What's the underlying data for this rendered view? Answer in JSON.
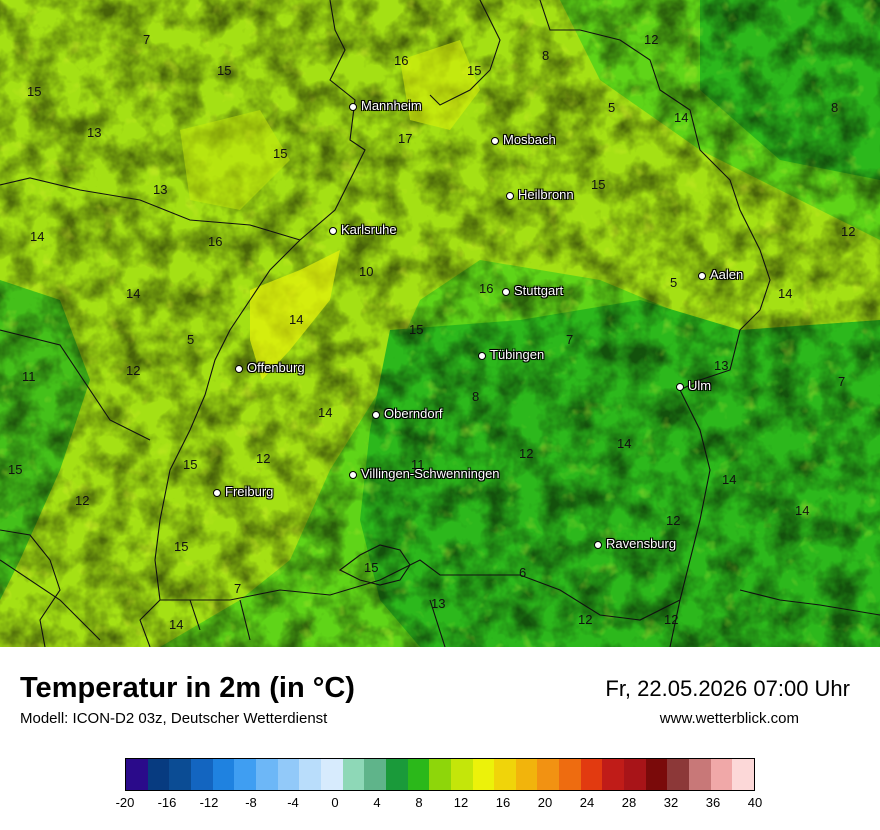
{
  "map": {
    "cities": [
      {
        "name": "Mannheim",
        "id": "mannheim"
      },
      {
        "name": "Mosbach",
        "id": "mosbach"
      },
      {
        "name": "Heilbronn",
        "id": "heilbronn"
      },
      {
        "name": "Karlsruhe",
        "id": "karlsruhe"
      },
      {
        "name": "Aalen",
        "id": "aalen"
      },
      {
        "name": "Stuttgart",
        "id": "stuttgart"
      },
      {
        "name": "Tübingen",
        "id": "tuebingen"
      },
      {
        "name": "Offenburg",
        "id": "offenburg"
      },
      {
        "name": "Ulm",
        "id": "ulm"
      },
      {
        "name": "Oberndorf",
        "id": "oberndorf"
      },
      {
        "name": "Villingen-Schwenningen",
        "id": "villingen"
      },
      {
        "name": "Freiburg",
        "id": "freiburg"
      },
      {
        "name": "Ravensburg",
        "id": "ravensburg"
      }
    ],
    "temperature_labels": [
      "7",
      "15",
      "16",
      "15",
      "8",
      "12",
      "15",
      "13",
      "5",
      "15",
      "17",
      "14",
      "8",
      "15",
      "13",
      "16",
      "14",
      "12",
      "10",
      "16",
      "5",
      "14",
      "14",
      "14",
      "15",
      "5",
      "7",
      "13",
      "11",
      "12",
      "7",
      "8",
      "14",
      "14",
      "12",
      "15",
      "12",
      "11",
      "15",
      "14",
      "12",
      "14",
      "12",
      "15",
      "15",
      "6",
      "7",
      "13",
      "14",
      "12",
      "12"
    ]
  },
  "header": {
    "title": "Temperatur in 2m (in °C)",
    "model": "Modell: ICON-D2 03z, Deutscher Wetterdienst",
    "datetime": "Fr, 22.05.2026 07:00 Uhr",
    "site": "www.wetterblick.com"
  },
  "legend": {
    "colors": [
      "#2a0a8a",
      "#073b80",
      "#0b4c94",
      "#1365c0",
      "#1f82e0",
      "#3f9ef2",
      "#6db7f7",
      "#92c9f9",
      "#b9ddfb",
      "#d7ebfd",
      "#8ed8b7",
      "#5fb48a",
      "#1a9a3a",
      "#2bb81a",
      "#8ed60a",
      "#c4e60a",
      "#ecf20a",
      "#f0d40a",
      "#f2b40c",
      "#f29212",
      "#ee6c10",
      "#e23a10",
      "#c01c18",
      "#a81418",
      "#7a0a0a",
      "#8c3838",
      "#c87878",
      "#f0a8a8",
      "#fcd8d8"
    ],
    "ticks": [
      "-20",
      "-16",
      "-12",
      "-8",
      "-4",
      "0",
      "4",
      "8",
      "12",
      "16",
      "20",
      "24",
      "28",
      "32",
      "36",
      "40"
    ]
  }
}
